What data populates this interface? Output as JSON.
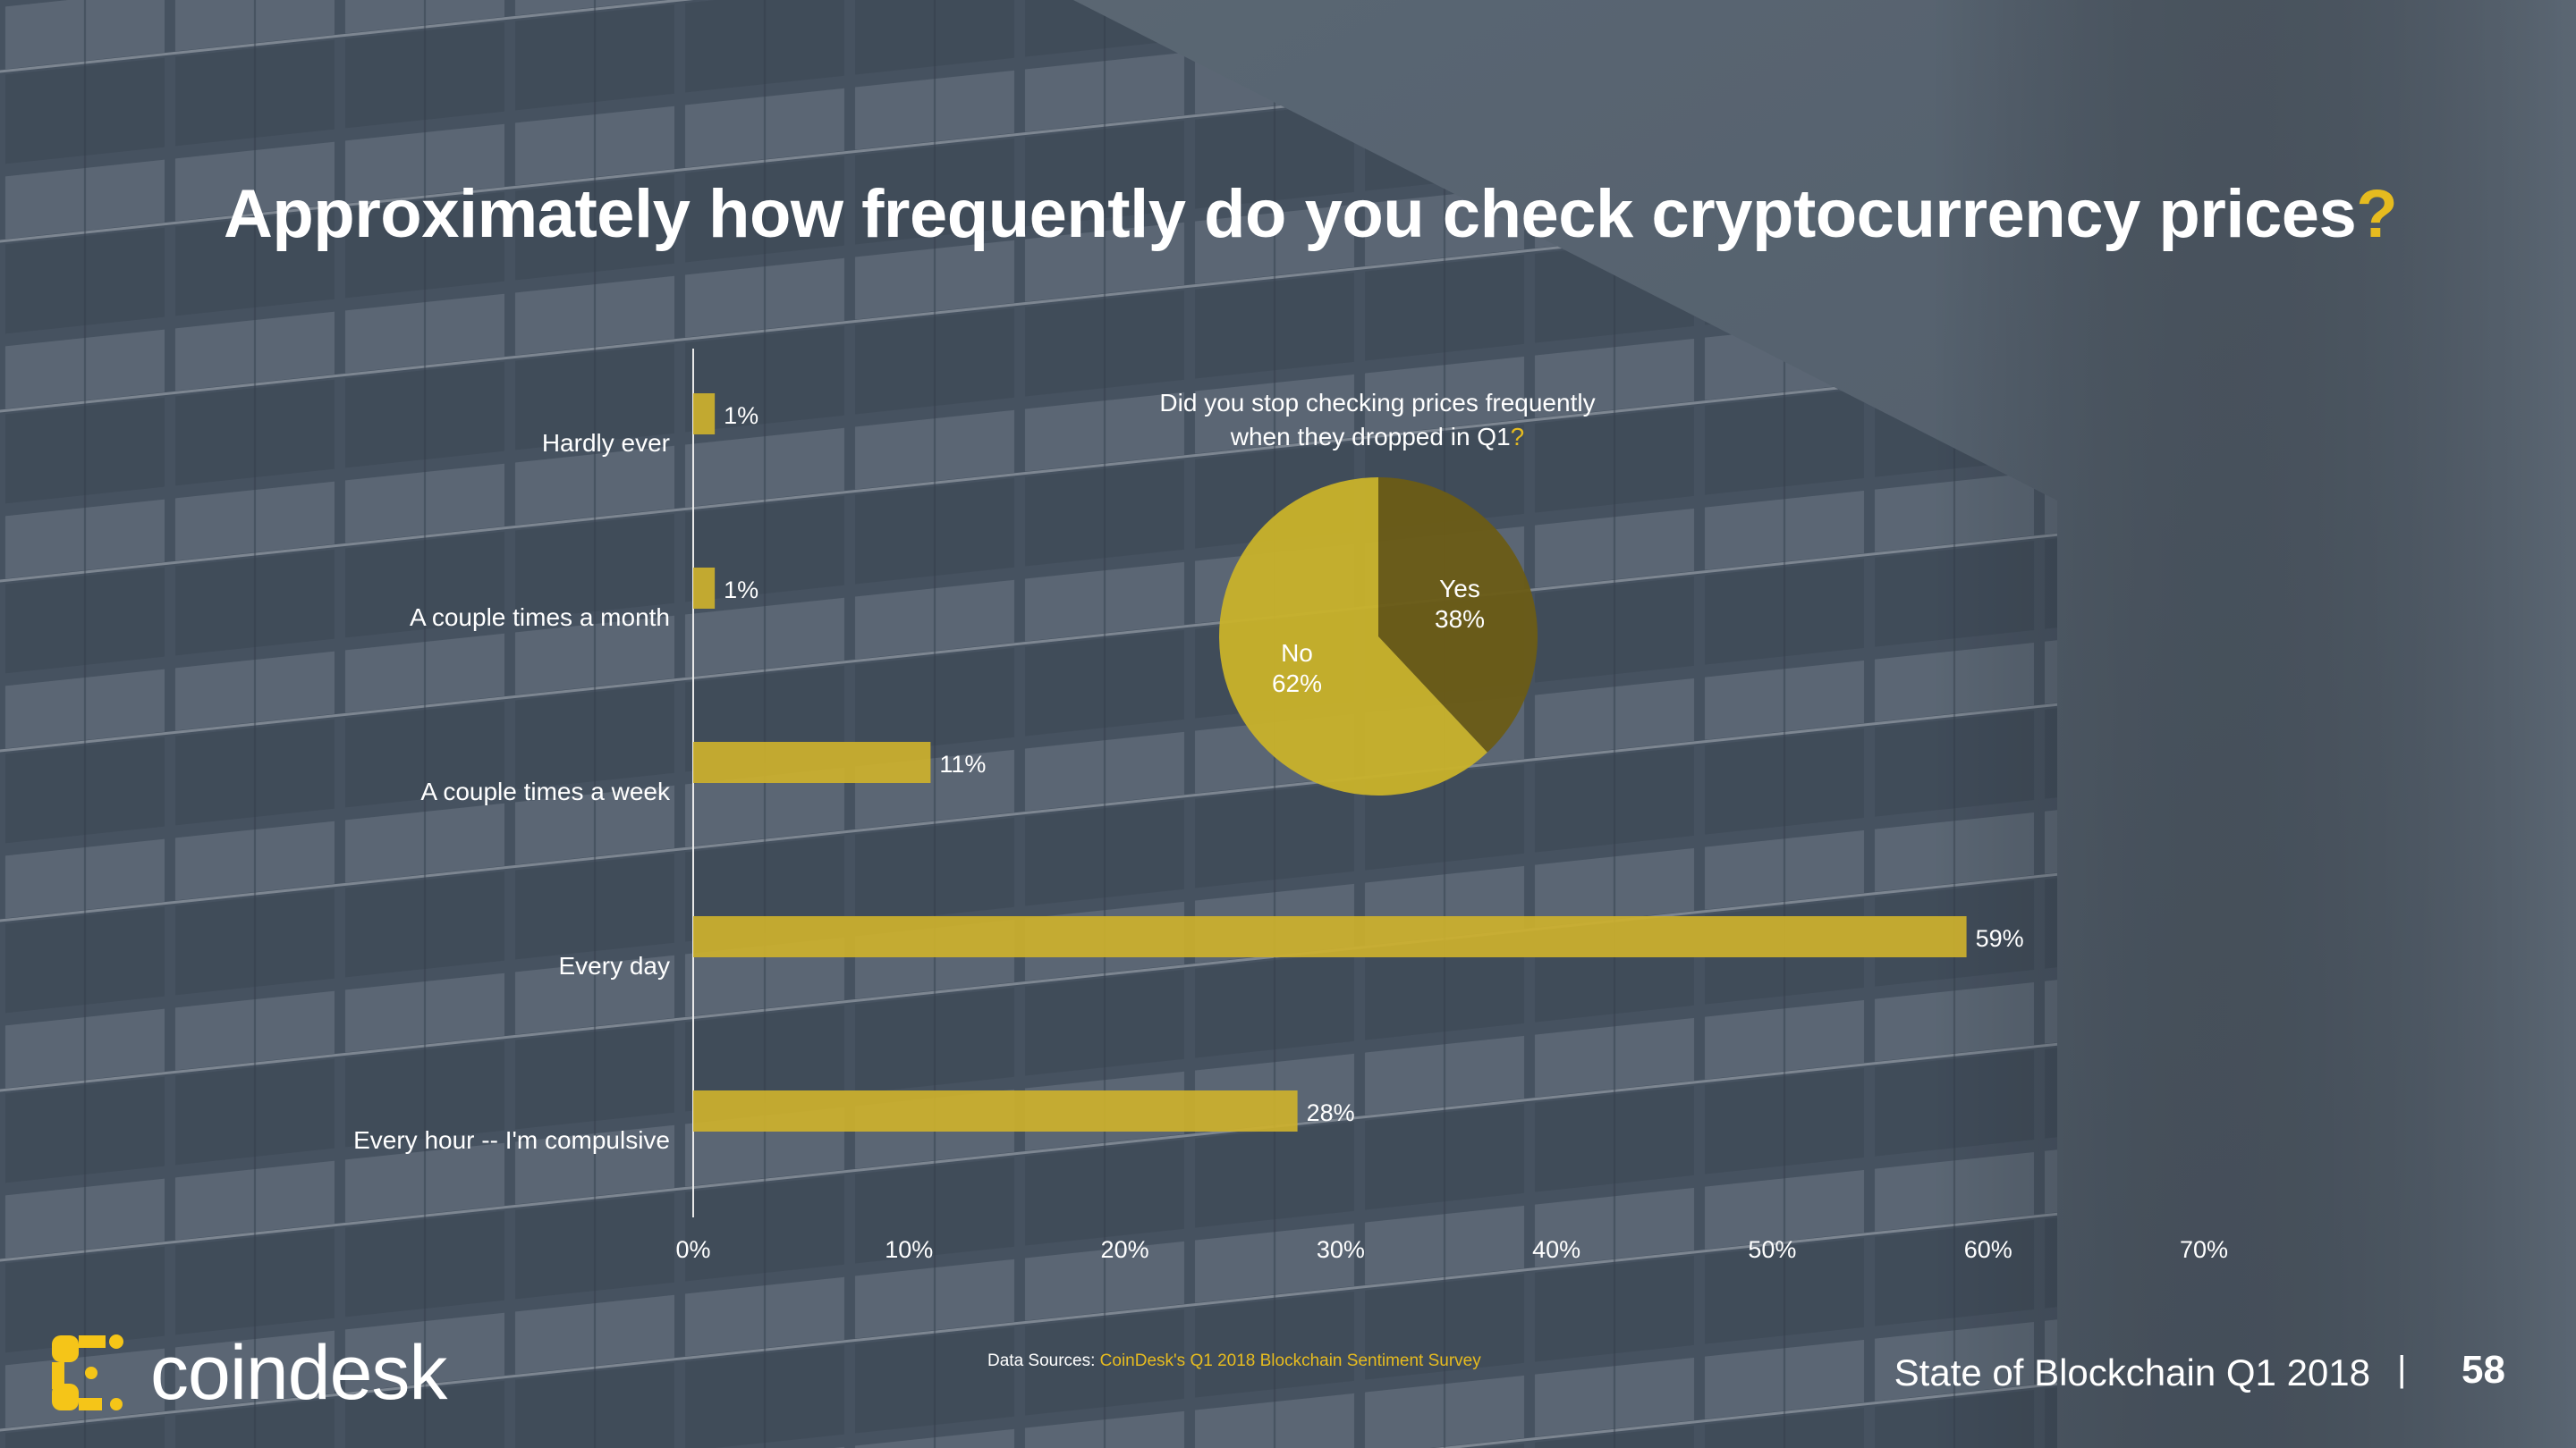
{
  "title": {
    "text": "Approximately how frequently do you check cryptocurrency prices",
    "mark": "?"
  },
  "colors": {
    "accent": "#e6bb1f",
    "bar": "#cdb12d",
    "pie_no": "#c9b22a",
    "pie_yes": "#6b5c16",
    "axis": "#e8e8e8",
    "text": "#ffffff"
  },
  "chart_data": [
    {
      "type": "bar",
      "orientation": "horizontal",
      "categories": [
        "Hardly ever",
        "A couple times a month",
        "A couple times a week",
        "Every day",
        "Every hour -- I'm compulsive"
      ],
      "values": [
        1,
        1,
        11,
        59,
        28
      ],
      "value_labels": [
        "1%",
        "1%",
        "11%",
        "59%",
        "28%"
      ],
      "xlim": [
        0,
        70
      ],
      "x_ticks": [
        0,
        10,
        20,
        30,
        40,
        50,
        60,
        70
      ],
      "x_tick_labels": [
        "0%",
        "10%",
        "20%",
        "30%",
        "40%",
        "50%",
        "60%",
        "70%"
      ],
      "grid": false
    },
    {
      "type": "pie",
      "title": "Did you stop checking prices frequently when they dropped in Q1",
      "title_line1": "Did you stop checking prices frequently",
      "title_line2": "when they dropped in Q1",
      "title_mark": "?",
      "slices": [
        {
          "label": "Yes",
          "value": 38,
          "value_label": "38%"
        },
        {
          "label": "No",
          "value": 62,
          "value_label": "62%"
        }
      ]
    }
  ],
  "brand": {
    "name": "coindesk"
  },
  "footer": {
    "sources_prefix": "Data Sources: ",
    "sources_link": "CoinDesk's Q1 2018 Blockchain Sentiment Survey",
    "report": "State of Blockchain Q1 2018",
    "separator": "|",
    "page": "58"
  }
}
